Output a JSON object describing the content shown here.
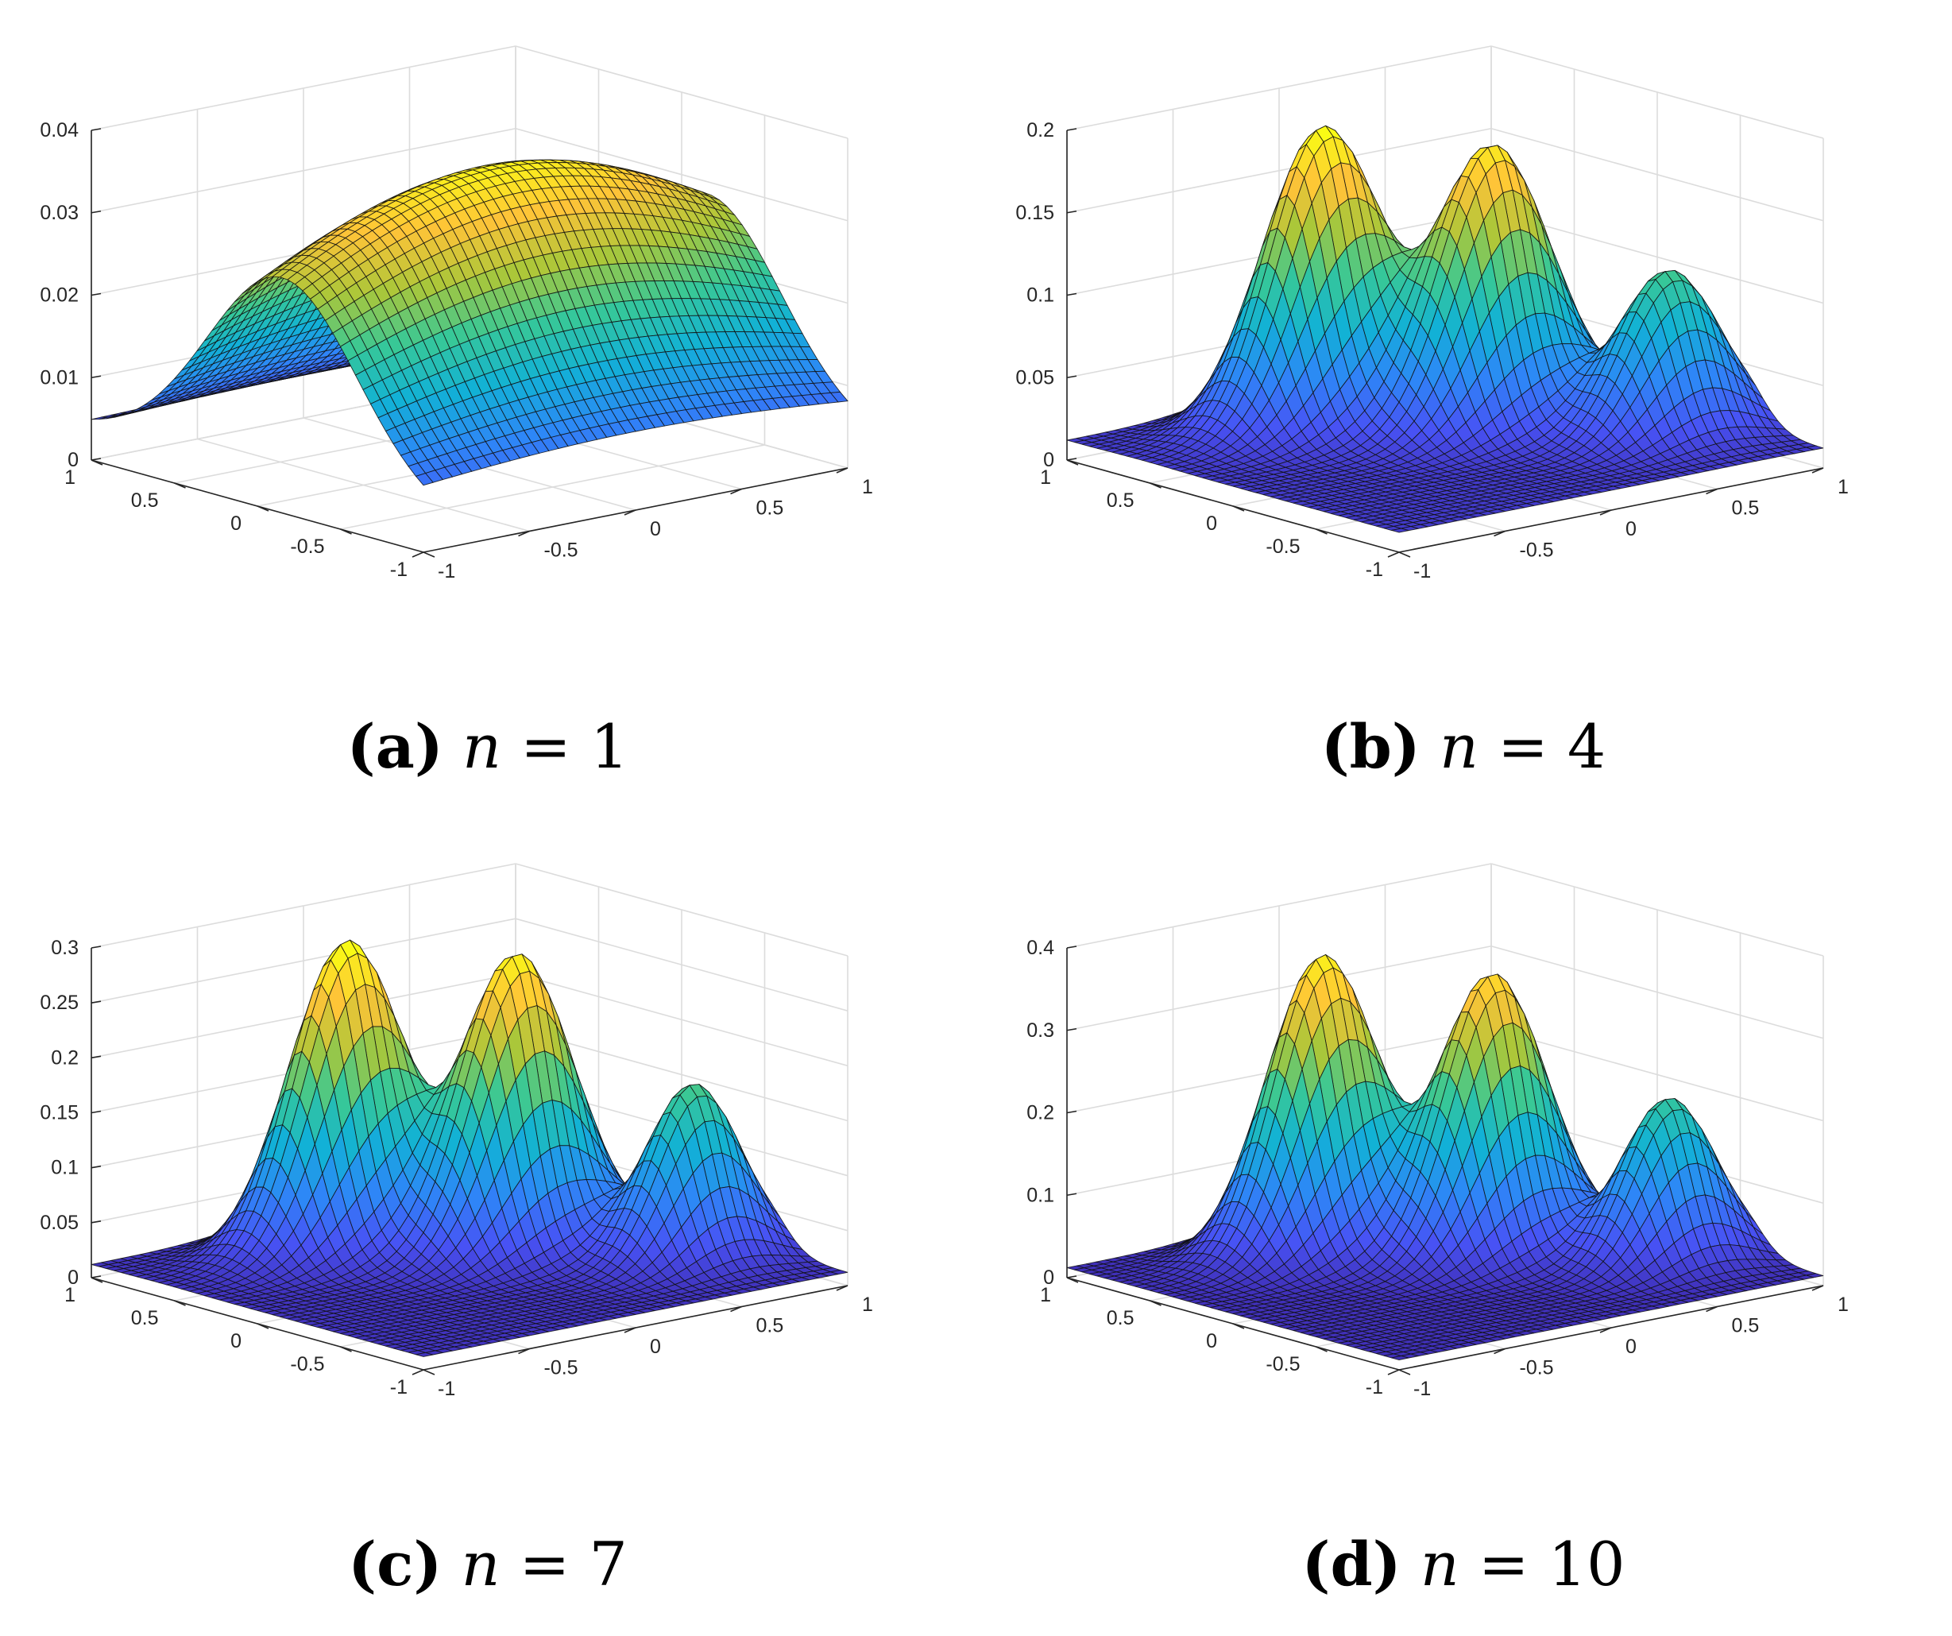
{
  "chart_data": [
    {
      "type": "surface",
      "caption": {
        "label": "(a)",
        "var": "n",
        "eq": "=",
        "value": "1"
      },
      "x": {
        "range": [
          -1,
          1
        ],
        "ticks": [
          "-1",
          "-0.5",
          "0",
          "0.5",
          "1"
        ]
      },
      "y": {
        "range": [
          -1,
          1
        ],
        "ticks": [
          "-1",
          "-0.5",
          "0",
          "0.5",
          "1"
        ]
      },
      "z": {
        "range": [
          0,
          0.04
        ],
        "ticks": [
          "0",
          "0.01",
          "0.02",
          "0.03",
          "0.04"
        ]
      },
      "grid": true,
      "colormap": "parula",
      "peaks": [
        {
          "x": 0.0,
          "y": -0.15,
          "height": 0.033,
          "sx": 1.3,
          "sy": 0.45
        }
      ],
      "base": 0.004
    },
    {
      "type": "surface",
      "caption": {
        "label": "(b)",
        "var": "n",
        "eq": "=",
        "value": "4"
      },
      "x": {
        "range": [
          -1,
          1
        ],
        "ticks": [
          "-1",
          "-0.5",
          "0",
          "0.5",
          "1"
        ]
      },
      "y": {
        "range": [
          -1,
          1
        ],
        "ticks": [
          "-1",
          "-0.5",
          "0",
          "0.5",
          "1"
        ]
      },
      "z": {
        "range": [
          0,
          0.2
        ],
        "ticks": [
          "0",
          "0.05",
          "0.1",
          "0.15",
          "0.2"
        ]
      },
      "grid": true,
      "colormap": "parula",
      "peaks": [
        {
          "x": -0.15,
          "y": 0.55,
          "height": 0.18,
          "sx": 0.25,
          "sy": 0.18
        },
        {
          "x": 0.3,
          "y": 0.1,
          "height": 0.17,
          "sx": 0.25,
          "sy": 0.18
        },
        {
          "x": 0.7,
          "y": -0.45,
          "height": 0.1,
          "sx": 0.22,
          "sy": 0.16
        }
      ],
      "base": 0.012
    },
    {
      "type": "surface",
      "caption": {
        "label": "(c)",
        "var": "n",
        "eq": "=",
        "value": "7"
      },
      "x": {
        "range": [
          -1,
          1
        ],
        "ticks": [
          "-1",
          "-0.5",
          "0",
          "0.5",
          "1"
        ]
      },
      "y": {
        "range": [
          -1,
          1
        ],
        "ticks": [
          "-1",
          "-0.5",
          "0",
          "0.5",
          "1"
        ]
      },
      "z": {
        "range": [
          0,
          0.3
        ],
        "ticks": [
          "0",
          "0.05",
          "0.1",
          "0.15",
          "0.2",
          "0.25",
          "0.3"
        ]
      },
      "grid": true,
      "colormap": "parula",
      "peaks": [
        {
          "x": -0.15,
          "y": 0.55,
          "height": 0.28,
          "sx": 0.24,
          "sy": 0.17
        },
        {
          "x": 0.3,
          "y": 0.1,
          "height": 0.27,
          "sx": 0.24,
          "sy": 0.17
        },
        {
          "x": 0.7,
          "y": -0.45,
          "height": 0.16,
          "sx": 0.2,
          "sy": 0.15
        }
      ],
      "base": 0.012
    },
    {
      "type": "surface",
      "caption": {
        "label": "(d)",
        "var": "n",
        "eq": "=",
        "value": "10"
      },
      "x": {
        "range": [
          -1,
          1
        ],
        "ticks": [
          "-1",
          "-0.5",
          "0",
          "0.5",
          "1"
        ]
      },
      "y": {
        "range": [
          -1,
          1
        ],
        "ticks": [
          "-1",
          "-0.5",
          "0",
          "0.5",
          "1"
        ]
      },
      "z": {
        "range": [
          0,
          0.4
        ],
        "ticks": [
          "0",
          "0.1",
          "0.2",
          "0.3",
          "0.4"
        ]
      },
      "grid": true,
      "colormap": "parula",
      "peaks": [
        {
          "x": -0.15,
          "y": 0.55,
          "height": 0.36,
          "sx": 0.23,
          "sy": 0.17
        },
        {
          "x": 0.3,
          "y": 0.1,
          "height": 0.34,
          "sx": 0.23,
          "sy": 0.17
        },
        {
          "x": 0.7,
          "y": -0.45,
          "height": 0.2,
          "sx": 0.2,
          "sy": 0.15
        }
      ],
      "base": 0.012
    }
  ]
}
